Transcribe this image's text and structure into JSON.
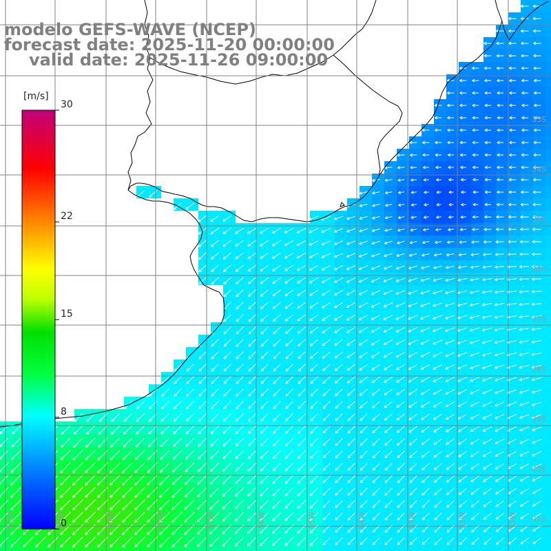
{
  "header": {
    "line1": "modelo GEFS-WAVE (NCEP)",
    "line2": "forecast date: 2025-11-20 00:00:00",
    "line3": "valid date: 2025-11-26 09:00:00"
  },
  "colorbar": {
    "unit": "[m/s]",
    "ticks": [
      {
        "label": "30",
        "value": 30
      },
      {
        "label": "22",
        "value": 22
      },
      {
        "label": "15",
        "value": 15
      },
      {
        "label": "8",
        "value": 8
      },
      {
        "label": "0",
        "value": 0
      }
    ],
    "min": 0,
    "max": 30,
    "colors": [
      "#0000ff",
      "#00aaff",
      "#00ffff",
      "#00ff00",
      "#ffff00",
      "#ff8000",
      "#ff0000",
      "#c8007a"
    ]
  },
  "grid": {
    "lat_labels": [
      "33S",
      "34S",
      "35S",
      "36S",
      "37S",
      "38S",
      "39S",
      "40S",
      "41S"
    ],
    "lon_labels": [
      "61W",
      "60W",
      "59W",
      "58W",
      "57W",
      "56W",
      "55W",
      "54W",
      "53W",
      "52W",
      "51W"
    ]
  },
  "colors": {
    "land": "#ffffff",
    "coast": "#000000",
    "gridline": "#808080",
    "arrow": "#ffffff",
    "title": "#808080"
  }
}
